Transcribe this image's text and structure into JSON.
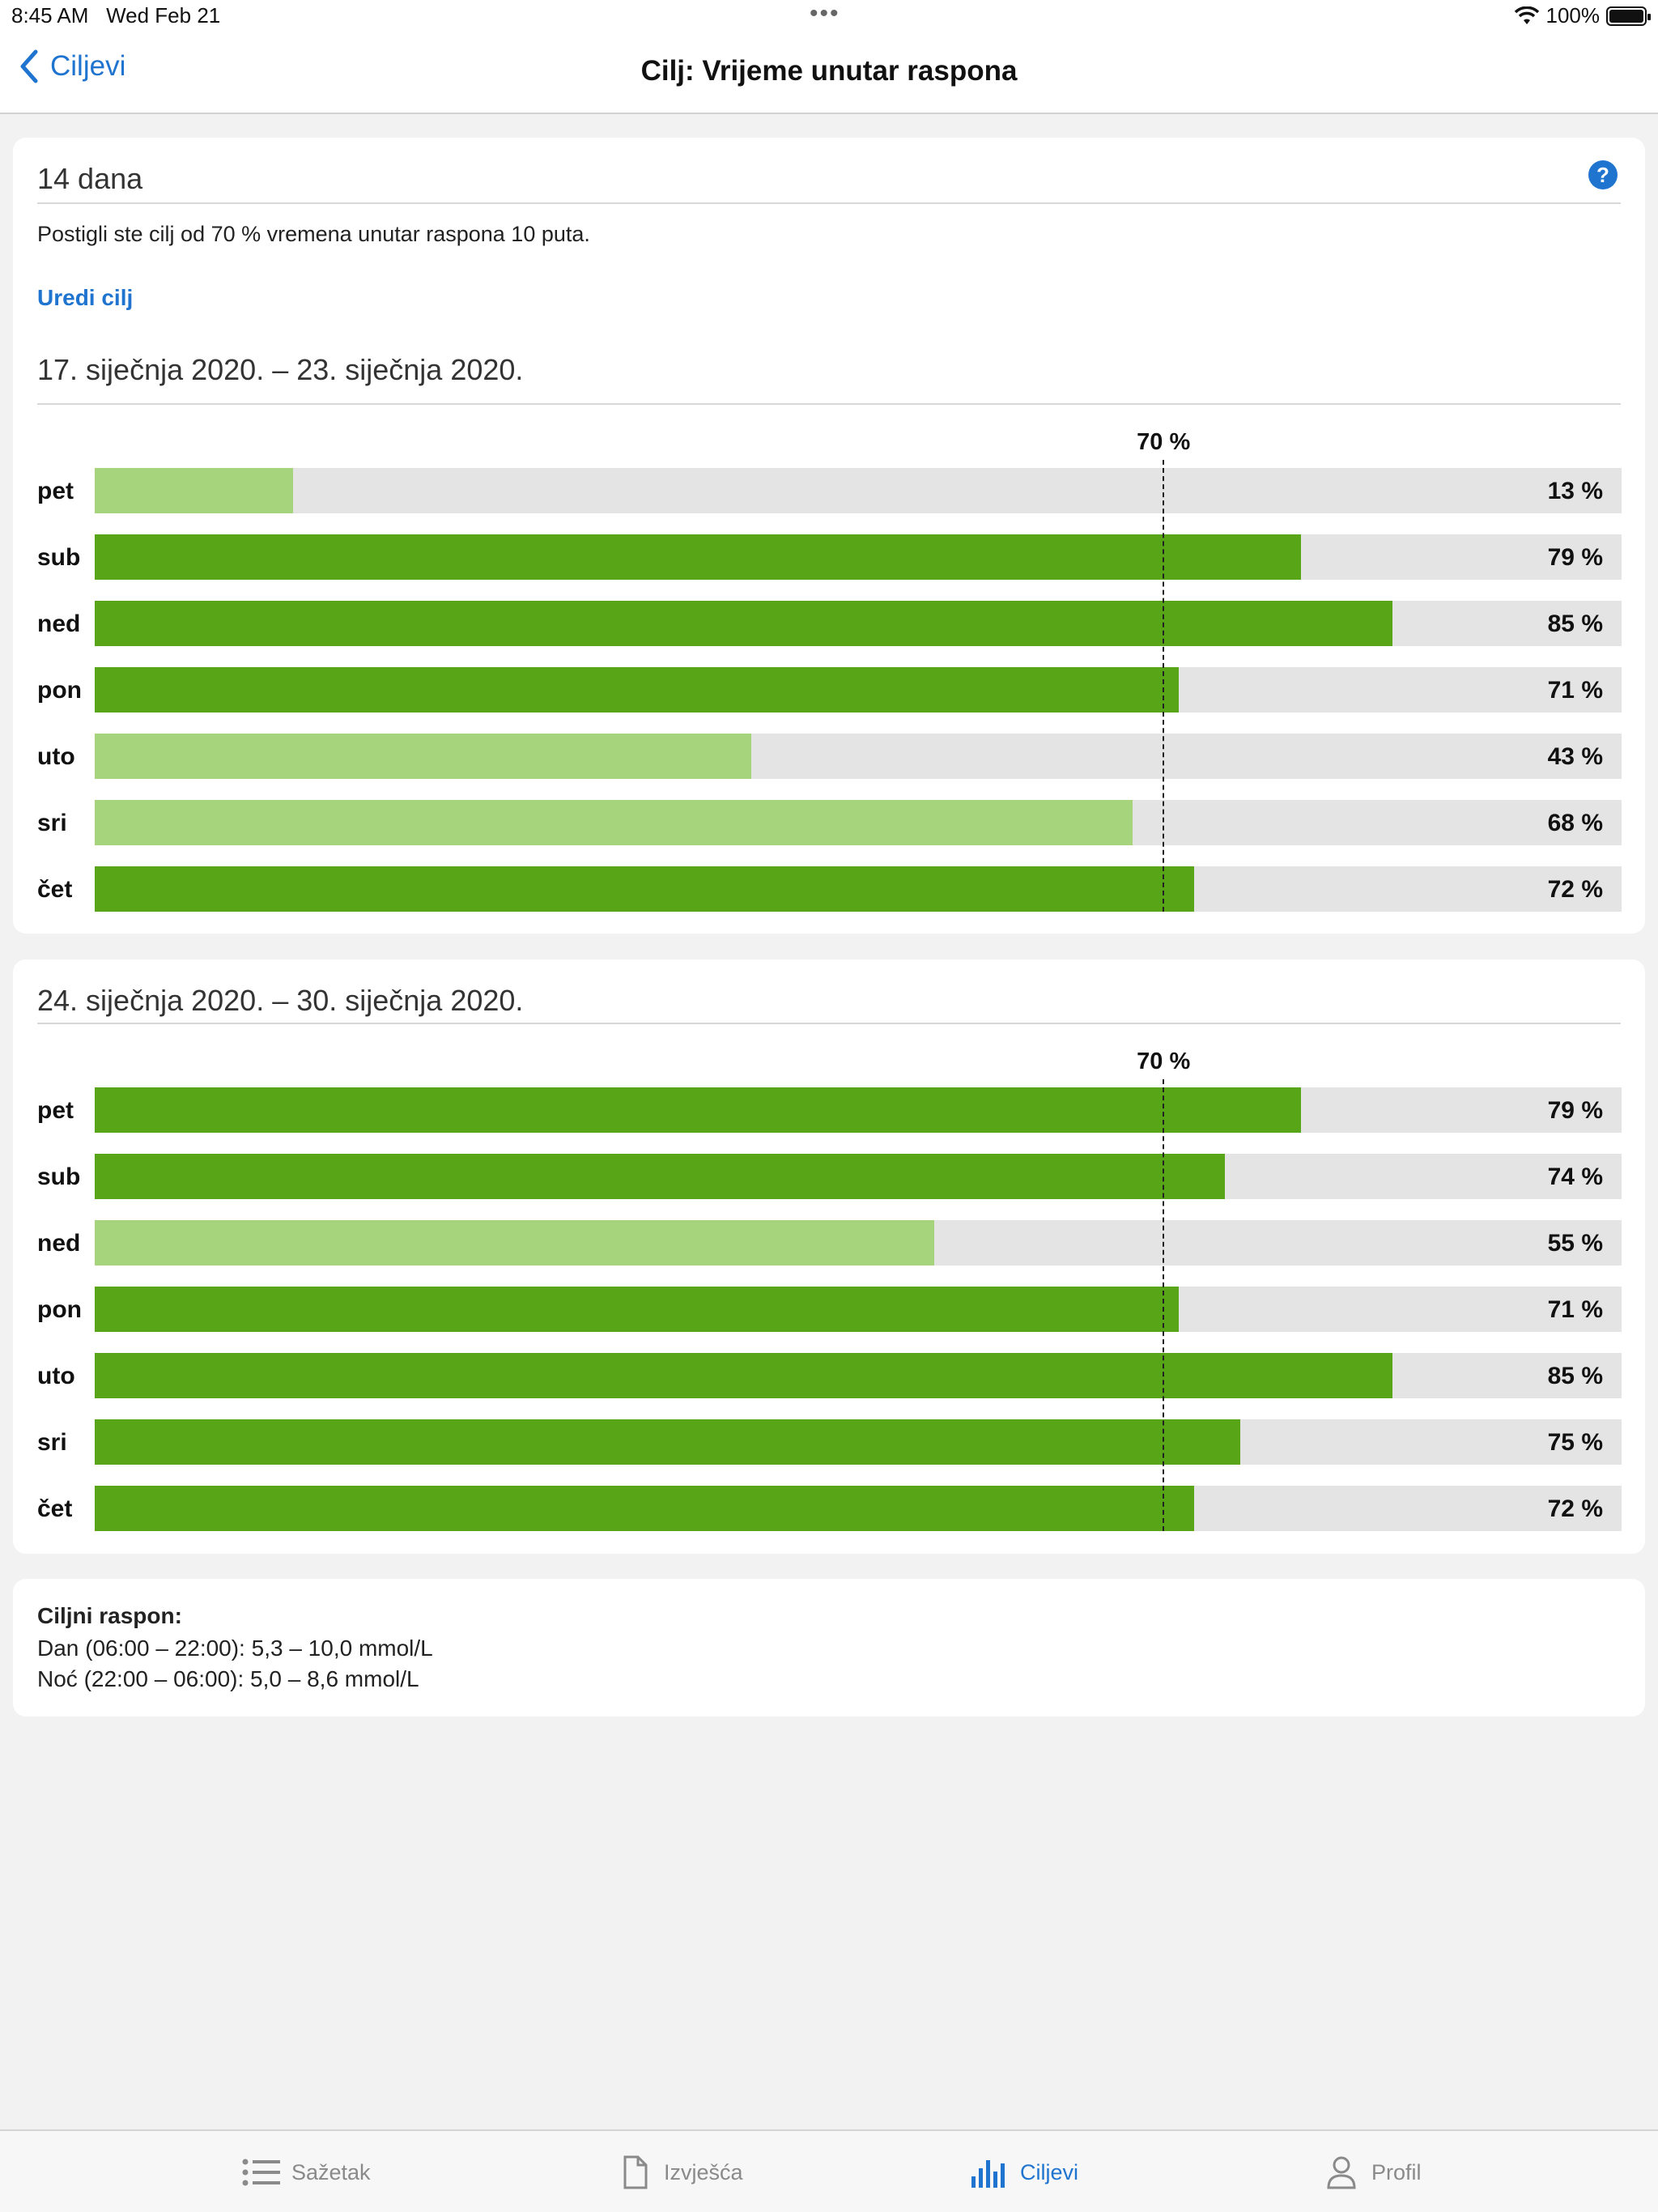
{
  "status_bar": {
    "time": "8:45 AM",
    "date": "Wed Feb 21",
    "dots": "•••",
    "battery": "100%"
  },
  "nav": {
    "back_label": "Ciljevi",
    "title": "Cilj: Vrijeme unutar raspona"
  },
  "goal": {
    "period": "14 dana",
    "summary": "Postigli ste cilj od 70 % vremena unutar raspona 10 puta.",
    "edit_label": "Uredi cilj",
    "threshold_label": "70 %",
    "threshold": 70
  },
  "chart_data": [
    {
      "type": "bar",
      "orientation": "horizontal",
      "title": "17. siječnja 2020. – 23. siječnja 2020.",
      "categories": [
        "pet",
        "sub",
        "ned",
        "pon",
        "uto",
        "sri",
        "čet"
      ],
      "values": [
        13,
        79,
        85,
        71,
        43,
        68,
        72
      ],
      "labels": [
        "13 %",
        "79 %",
        "85 %",
        "71 %",
        "43 %",
        "68 %",
        "72 %"
      ],
      "xlim": [
        0,
        100
      ],
      "reference_line": {
        "value": 70,
        "label": "70 %"
      }
    },
    {
      "type": "bar",
      "orientation": "horizontal",
      "title": "24. siječnja 2020. – 30. siječnja 2020.",
      "categories": [
        "pet",
        "sub",
        "ned",
        "pon",
        "uto",
        "sri",
        "čet"
      ],
      "values": [
        79,
        74,
        55,
        71,
        85,
        75,
        72
      ],
      "labels": [
        "79 %",
        "74 %",
        "55 %",
        "71 %",
        "85 %",
        "75 %",
        "72 %"
      ],
      "xlim": [
        0,
        100
      ],
      "reference_line": {
        "value": 70,
        "label": "70 %"
      }
    }
  ],
  "target_range": {
    "title": "Ciljni raspon:",
    "day": "Dan (06:00 – 22:00): 5,3 – 10,0 mmol/L",
    "night": "Noć (22:00 – 06:00): 5,0 – 8,6 mmol/L"
  },
  "colors": {
    "accent": "#1f74d0",
    "met": "#58a618",
    "not_met": "#a6d47c",
    "track": "#e4e4e4"
  },
  "tabs": [
    {
      "label": "Sažetak",
      "icon": "list-icon"
    },
    {
      "label": "Izvješća",
      "icon": "document-icon"
    },
    {
      "label": "Ciljevi",
      "icon": "bar-chart-icon"
    },
    {
      "label": "Profil",
      "icon": "person-icon"
    }
  ]
}
